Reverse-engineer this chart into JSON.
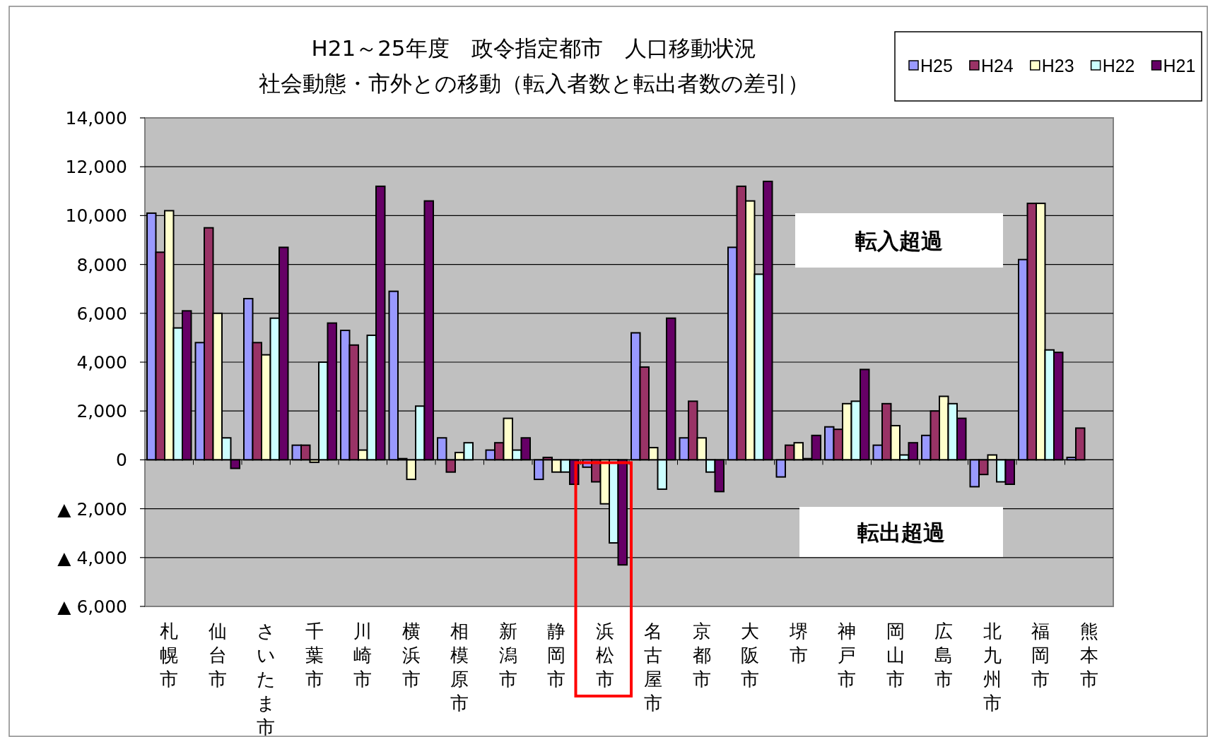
{
  "chart_data": {
    "type": "bar",
    "title": "H21～25年度　政令指定都市　人口移動状況",
    "subtitle": "社会動態・市外との移動（転入者数と転出者数の差引）",
    "categories": [
      "札幌市",
      "仙台市",
      "さいたま市",
      "千葉市",
      "川崎市",
      "横浜市",
      "相模原市",
      "新潟市",
      "静岡市",
      "浜松市",
      "名古屋市",
      "京都市",
      "大阪市",
      "堺市",
      "神戸市",
      "岡山市",
      "広島市",
      "北九州市",
      "福岡市",
      "熊本市"
    ],
    "series": [
      {
        "name": "H25",
        "color": "#9999ff",
        "values": [
          10100,
          4800,
          6600,
          600,
          5300,
          6900,
          900,
          400,
          -800,
          -300,
          5200,
          900,
          8700,
          -700,
          1350,
          600,
          1000,
          -1100,
          8200,
          100
        ]
      },
      {
        "name": "H24",
        "color": "#993366",
        "values": [
          8500,
          9500,
          4800,
          600,
          4700,
          50,
          -500,
          700,
          100,
          -900,
          3800,
          2400,
          11200,
          600,
          1250,
          2300,
          2000,
          -600,
          10500,
          1300
        ]
      },
      {
        "name": "H23",
        "color": "#ffffcc",
        "values": [
          10200,
          6000,
          4300,
          -100,
          400,
          -800,
          300,
          1700,
          -500,
          -1800,
          500,
          900,
          10600,
          700,
          2300,
          1400,
          2600,
          200,
          10500,
          null
        ]
      },
      {
        "name": "H22",
        "color": "#ccffff",
        "values": [
          5400,
          900,
          5800,
          4000,
          5100,
          2200,
          700,
          400,
          -500,
          -3400,
          -1200,
          -500,
          7600,
          50,
          2400,
          200,
          2300,
          -900,
          4500,
          null
        ]
      },
      {
        "name": "H21",
        "color": "#660066",
        "values": [
          6100,
          -350,
          8700,
          5600,
          11200,
          10600,
          null,
          900,
          -1000,
          -4300,
          5800,
          -1300,
          11400,
          1000,
          3700,
          700,
          1700,
          -1000,
          4400,
          null
        ]
      }
    ],
    "ylim": [
      -6000,
      14000
    ],
    "yticks": [
      {
        "value": -6000,
        "label": "▲ 6,000"
      },
      {
        "value": -4000,
        "label": "▲ 4,000"
      },
      {
        "value": -2000,
        "label": "▲ 2,000"
      },
      0,
      {
        "value": 2000,
        "label": "2,000"
      },
      {
        "value": 4000,
        "label": "4,000"
      },
      {
        "value": 6000,
        "label": "6,000"
      },
      {
        "value": 8000,
        "label": "8,000"
      },
      {
        "value": 10000,
        "label": "10,000"
      },
      {
        "value": 12000,
        "label": "12,000"
      },
      {
        "value": 14000,
        "label": "14,000"
      }
    ],
    "grid": "y",
    "legend": "top right",
    "annotations": [
      "転入超過",
      "転出超過"
    ]
  }
}
